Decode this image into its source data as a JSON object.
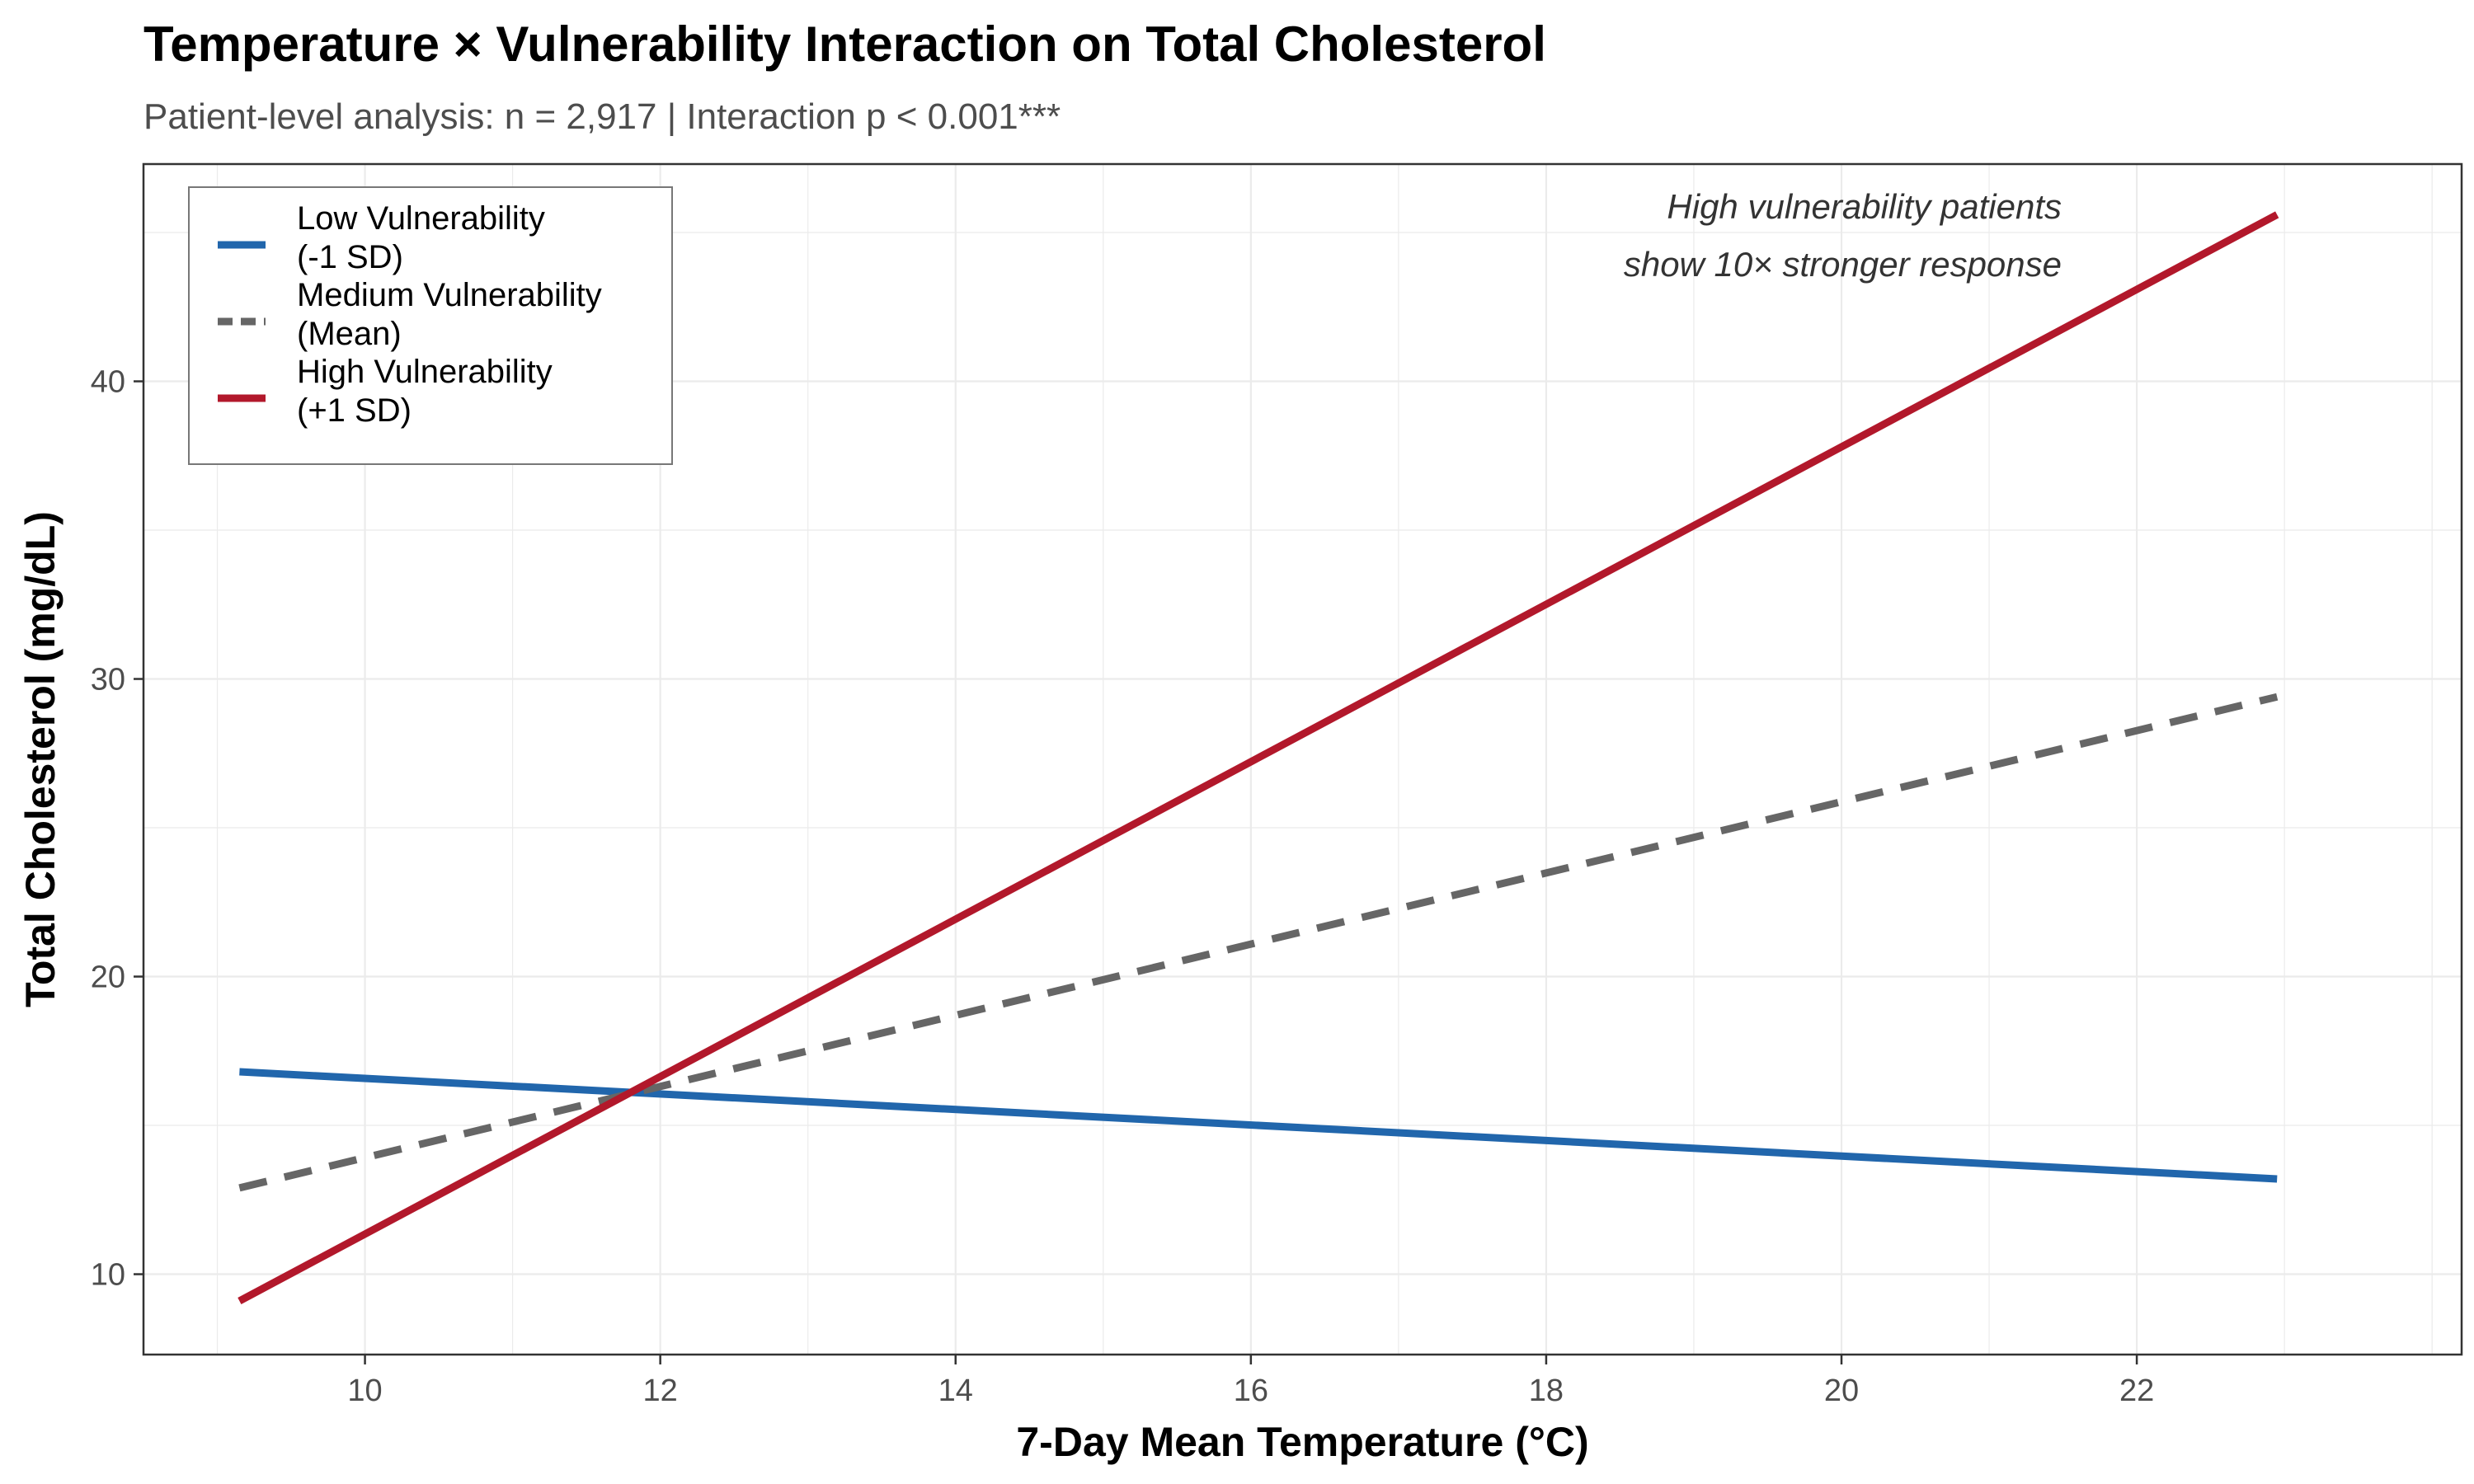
{
  "chart_data": {
    "type": "line",
    "title": "Temperature × Vulnerability Interaction on Total Cholesterol",
    "subtitle": "Patient-level analysis: n = 2,917 | Interaction p < 0.001***",
    "xlabel": "7-Day Mean Temperature (°C)",
    "ylabel": "Total Cholesterol (mg/dL)",
    "xlim": [
      8.5,
      24.2
    ],
    "ylim": [
      7.3,
      47.3
    ],
    "xticks": [
      10,
      12,
      14,
      16,
      18,
      20,
      22
    ],
    "yticks": [
      10,
      20,
      30,
      40
    ],
    "grid": true,
    "legend_position": "top-left",
    "series": [
      {
        "name": "Low Vulnerability\n(-1 SD)",
        "color": "#2166ac",
        "dash": "solid",
        "x": [
          9.15,
          22.95
        ],
        "y": [
          16.8,
          13.2
        ]
      },
      {
        "name": "Medium Vulnerability\n(Mean)",
        "color": "#666666",
        "dash": "dashed",
        "x": [
          9.15,
          22.95
        ],
        "y": [
          12.9,
          29.4
        ]
      },
      {
        "name": "High Vulnerability\n(+1 SD)",
        "color": "#b2182b",
        "dash": "solid",
        "x": [
          9.15,
          22.95
        ],
        "y": [
          9.1,
          45.6
        ]
      }
    ],
    "annotation": {
      "lines": [
        "High vulnerability patients",
        "show 10× stronger response"
      ]
    }
  }
}
